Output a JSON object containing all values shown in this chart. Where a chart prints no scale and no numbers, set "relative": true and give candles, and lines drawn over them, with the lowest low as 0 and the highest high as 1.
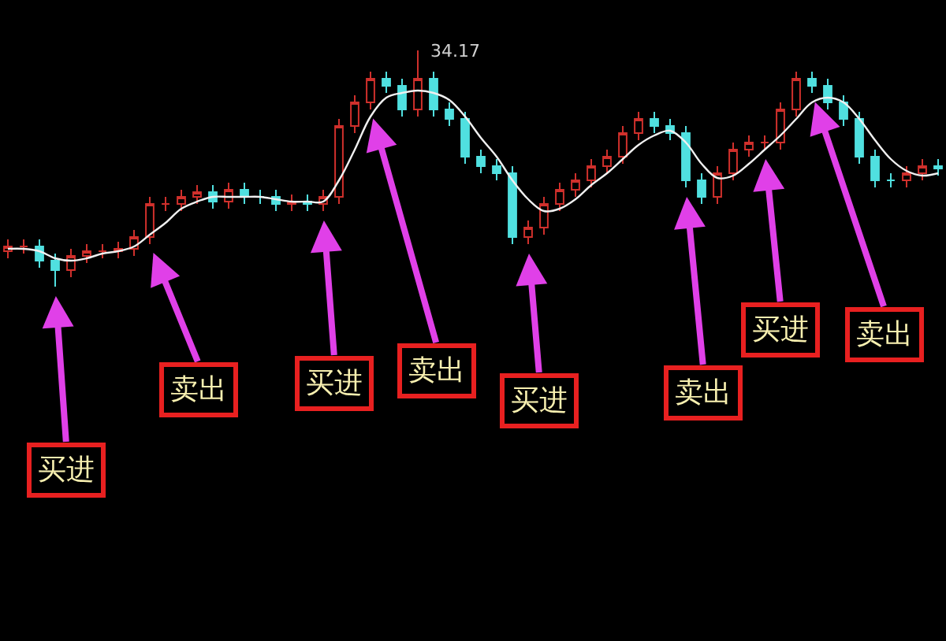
{
  "chart_data": {
    "type": "candlestick",
    "relative": true,
    "tick_labels": false,
    "categories": [
      null,
      null,
      null,
      null,
      null,
      null,
      null,
      null,
      null,
      null,
      null,
      null,
      null,
      null,
      null,
      null,
      null,
      null,
      null,
      null,
      null,
      null,
      null,
      null,
      null,
      null,
      null,
      null,
      null,
      null,
      null,
      null,
      null,
      null,
      null,
      null,
      null,
      null,
      null,
      null,
      null,
      null,
      null,
      null,
      null,
      null,
      null,
      null,
      null,
      null,
      null,
      null,
      null,
      null,
      null,
      null,
      null,
      null,
      null,
      null
    ],
    "ohlc": [
      [
        0.15,
        0.2,
        0.12,
        0.17
      ],
      [
        0.17,
        0.2,
        0.14,
        0.17
      ],
      [
        0.17,
        0.2,
        0.08,
        0.11
      ],
      [
        0.11,
        0.14,
        0,
        0.07
      ],
      [
        0.07,
        0.16,
        0.04,
        0.13
      ],
      [
        0.13,
        0.18,
        0.1,
        0.15
      ],
      [
        0.15,
        0.18,
        0.12,
        0.15
      ],
      [
        0.15,
        0.19,
        0.12,
        0.16
      ],
      [
        0.16,
        0.24,
        0.13,
        0.21
      ],
      [
        0.21,
        0.38,
        0.18,
        0.35
      ],
      [
        0.35,
        0.38,
        0.32,
        0.35
      ],
      [
        0.35,
        0.41,
        0.32,
        0.38
      ],
      [
        0.38,
        0.43,
        0.35,
        0.4
      ],
      [
        0.4,
        0.43,
        0.33,
        0.36
      ],
      [
        0.36,
        0.44,
        0.33,
        0.41
      ],
      [
        0.41,
        0.44,
        0.35,
        0.38
      ],
      [
        0.38,
        0.41,
        0.35,
        0.38
      ],
      [
        0.38,
        0.41,
        0.32,
        0.35
      ],
      [
        0.35,
        0.39,
        0.32,
        0.36
      ],
      [
        0.36,
        0.39,
        0.32,
        0.35
      ],
      [
        0.35,
        0.41,
        0.32,
        0.38
      ],
      [
        0.38,
        0.71,
        0.35,
        0.68
      ],
      [
        0.68,
        0.81,
        0.65,
        0.78
      ],
      [
        0.78,
        0.91,
        0.75,
        0.88
      ],
      [
        0.88,
        0.91,
        0.82,
        0.85
      ],
      [
        0.85,
        0.88,
        0.72,
        0.75
      ],
      [
        0.75,
        1,
        0.72,
        0.88
      ],
      [
        0.88,
        0.91,
        0.72,
        0.75
      ],
      [
        0.75,
        0.78,
        0.68,
        0.71
      ],
      [
        0.71,
        0.74,
        0.52,
        0.55
      ],
      [
        0.55,
        0.58,
        0.48,
        0.51
      ],
      [
        0.51,
        0.54,
        0.45,
        0.48
      ],
      [
        0.48,
        0.51,
        0.18,
        0.21
      ],
      [
        0.21,
        0.28,
        0.18,
        0.25
      ],
      [
        0.25,
        0.38,
        0.22,
        0.35
      ],
      [
        0.35,
        0.44,
        0.32,
        0.41
      ],
      [
        0.41,
        0.48,
        0.38,
        0.45
      ],
      [
        0.45,
        0.54,
        0.42,
        0.51
      ],
      [
        0.51,
        0.58,
        0.48,
        0.55
      ],
      [
        0.55,
        0.68,
        0.52,
        0.65
      ],
      [
        0.65,
        0.74,
        0.62,
        0.71
      ],
      [
        0.71,
        0.74,
        0.65,
        0.68
      ],
      [
        0.68,
        0.71,
        0.62,
        0.65
      ],
      [
        0.65,
        0.68,
        0.42,
        0.45
      ],
      [
        0.45,
        0.48,
        0.35,
        0.38
      ],
      [
        0.38,
        0.51,
        0.35,
        0.48
      ],
      [
        0.48,
        0.61,
        0.45,
        0.58
      ],
      [
        0.58,
        0.64,
        0.55,
        0.61
      ],
      [
        0.61,
        0.64,
        0.58,
        0.61
      ],
      [
        0.61,
        0.78,
        0.58,
        0.75
      ],
      [
        0.75,
        0.91,
        0.72,
        0.88
      ],
      [
        0.88,
        0.91,
        0.82,
        0.85
      ],
      [
        0.85,
        0.88,
        0.75,
        0.78
      ],
      [
        0.78,
        0.81,
        0.68,
        0.71
      ],
      [
        0.71,
        0.74,
        0.52,
        0.55
      ],
      [
        0.55,
        0.58,
        0.42,
        0.45
      ],
      [
        0.45,
        0.48,
        0.42,
        0.45
      ],
      [
        0.45,
        0.51,
        0.42,
        0.48
      ],
      [
        0.48,
        0.54,
        0.45,
        0.51
      ],
      [
        0.51,
        0.54,
        0.47,
        0.5
      ]
    ],
    "series": [
      {
        "type": "line",
        "color": "#f0f0f0",
        "values": [
          0.16,
          0.16,
          0.15,
          0.12,
          0.11,
          0.12,
          0.14,
          0.15,
          0.17,
          0.22,
          0.27,
          0.33,
          0.36,
          0.38,
          0.38,
          0.38,
          0.38,
          0.37,
          0.36,
          0.36,
          0.36,
          0.45,
          0.58,
          0.72,
          0.8,
          0.82,
          0.83,
          0.82,
          0.79,
          0.72,
          0.63,
          0.55,
          0.45,
          0.37,
          0.32,
          0.33,
          0.37,
          0.43,
          0.48,
          0.54,
          0.6,
          0.64,
          0.66,
          0.61,
          0.52,
          0.46,
          0.47,
          0.52,
          0.58,
          0.64,
          0.71,
          0.78,
          0.8,
          0.78,
          0.71,
          0.62,
          0.54,
          0.49,
          0.47,
          0.48
        ]
      }
    ],
    "annotations": [
      "34.17",
      "买进",
      "卖出",
      "买进",
      "卖出",
      "买进",
      "卖出",
      "买进",
      "卖出"
    ]
  }
}
